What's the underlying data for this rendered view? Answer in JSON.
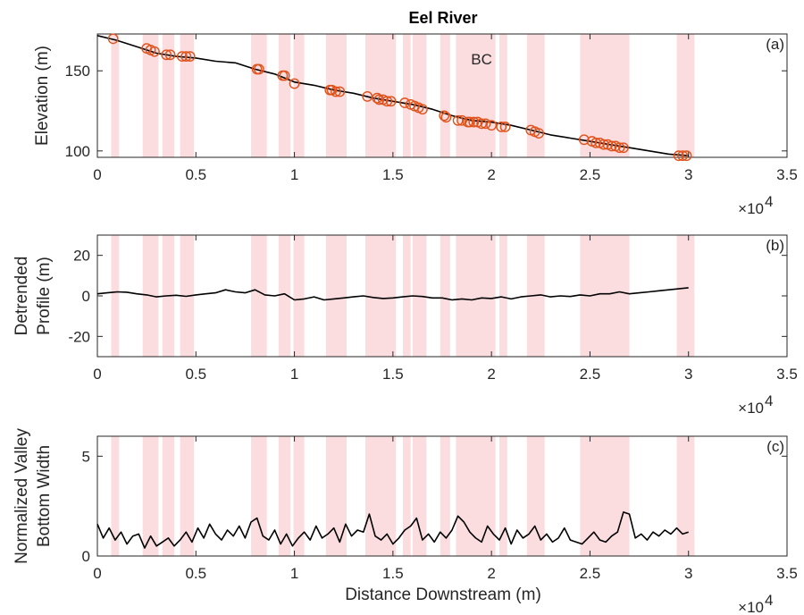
{
  "chart_data": {
    "title": "Eel River",
    "type": "line",
    "xlabel": "Distance Downstream (m)",
    "x_multiplier": "×10",
    "x_multiplier_exp": "4",
    "xlim": [
      0,
      35000
    ],
    "xticks": [
      0,
      5000,
      10000,
      15000,
      20000,
      25000,
      30000,
      35000
    ],
    "xticklabels": [
      "0",
      "0.5",
      "1",
      "1.5",
      "2",
      "2.5",
      "3",
      "3.5"
    ],
    "highlight_color": "#fbdde0",
    "highlight_bands": [
      [
        700,
        1100
      ],
      [
        2300,
        3100
      ],
      [
        3300,
        3900
      ],
      [
        4200,
        4900
      ],
      [
        7800,
        8600
      ],
      [
        9200,
        9800
      ],
      [
        9950,
        10500
      ],
      [
        11600,
        12650
      ],
      [
        13600,
        15150
      ],
      [
        15500,
        15900
      ],
      [
        16000,
        16700
      ],
      [
        17400,
        17900
      ],
      [
        18200,
        20200
      ],
      [
        20400,
        20800
      ],
      [
        21800,
        22700
      ],
      [
        24500,
        27000
      ],
      [
        29400,
        30300
      ]
    ],
    "panels": [
      {
        "id": "a",
        "panel_label": "(a)",
        "ylabel": [
          "Elevation (m)"
        ],
        "ylim": [
          96,
          173
        ],
        "yticks": [
          100,
          150
        ],
        "annotation": "BC",
        "series": [
          {
            "line_color": "#000000",
            "x": [
              0,
              1000,
              2000,
              3000,
              4000,
              5000,
              6000,
              7000,
              8000,
              9000,
              10000,
              11000,
              12000,
              13000,
              14000,
              15000,
              16000,
              17000,
              18000,
              19000,
              20000,
              21000,
              22000,
              23000,
              24000,
              25000,
              26000,
              27000,
              28000,
              29000,
              30000
            ],
            "y": [
              172,
              169,
              165,
              161,
              159,
              158,
              156,
              155,
              151,
              148,
              143,
              141,
              138,
              136,
              133,
              131,
              129,
              126,
              122,
              119,
              118,
              116,
              113,
              110,
              108,
              106,
              104,
              102,
              100,
              98,
              97
            ]
          }
        ],
        "markers": {
          "color": "#e0521a",
          "x": [
            800,
            2500,
            2700,
            2900,
            3500,
            3700,
            4300,
            4500,
            4700,
            8100,
            8200,
            9400,
            9500,
            10000,
            11800,
            11900,
            12100,
            12300,
            13700,
            14200,
            14300,
            14500,
            14700,
            14900,
            15600,
            15900,
            16100,
            16300,
            16500,
            17600,
            17700,
            18300,
            18500,
            18800,
            18900,
            19100,
            19300,
            19500,
            19700,
            20000,
            20500,
            20700,
            22000,
            22200,
            22400,
            24700,
            25100,
            25300,
            25500,
            25700,
            25900,
            26100,
            26300,
            26500,
            26700,
            29500,
            29700,
            29900
          ],
          "y": [
            170,
            164,
            163,
            162,
            160,
            160,
            159,
            159,
            159,
            151,
            151,
            147,
            147,
            142,
            138,
            138,
            137,
            137,
            134,
            133,
            132,
            132,
            131,
            131,
            130,
            129,
            128,
            127,
            126,
            122,
            121,
            119,
            119,
            118,
            118,
            118,
            118,
            117,
            117,
            116,
            115,
            115,
            113,
            112,
            111,
            107,
            106,
            105,
            105,
            104,
            104,
            103,
            103,
            102,
            102,
            97,
            97,
            97
          ]
        }
      },
      {
        "id": "b",
        "panel_label": "(b)",
        "ylabel": [
          "Detrended",
          "Profile (m)"
        ],
        "ylim": [
          -30,
          30
        ],
        "yticks": [
          -20,
          0,
          20
        ],
        "series": [
          {
            "line_color": "#000000",
            "x": [
              0,
              500,
              1000,
              1500,
              2000,
              2500,
              3000,
              3500,
              4000,
              4500,
              5000,
              5500,
              6000,
              6500,
              7000,
              7500,
              8000,
              8500,
              9000,
              9500,
              10000,
              10500,
              11000,
              11500,
              12000,
              12500,
              13000,
              13500,
              14000,
              14500,
              15000,
              15500,
              16000,
              16500,
              17000,
              17500,
              18000,
              18500,
              19000,
              19500,
              20000,
              20500,
              21000,
              21500,
              22000,
              22500,
              23000,
              23500,
              24000,
              24500,
              25000,
              25500,
              26000,
              26500,
              27000,
              27500,
              28000,
              28500,
              29000,
              29500,
              30000
            ],
            "y": [
              1,
              1.5,
              2,
              1.8,
              1,
              0.5,
              -0.5,
              0,
              0.3,
              -0.2,
              0.5,
              1,
              1.5,
              3,
              2,
              1.5,
              3,
              0.5,
              0,
              1,
              -2,
              -1.5,
              -0.5,
              -2,
              -1.5,
              -1,
              -0.5,
              0,
              -0.8,
              -1.3,
              -1,
              -0.5,
              0,
              -0.3,
              -1,
              -1,
              -2,
              -1.5,
              -2,
              -1,
              -1.3,
              -0.5,
              -1.5,
              -0.5,
              0,
              0.5,
              -0.5,
              0,
              -0.3,
              0.5,
              0,
              1,
              1,
              2,
              1,
              1.5,
              2,
              2.5,
              3,
              3.5,
              4
            ]
          }
        ]
      },
      {
        "id": "c",
        "panel_label": "(c)",
        "ylabel": [
          "Normalized Valley",
          "Bottom Width"
        ],
        "ylim": [
          0,
          6
        ],
        "yticks": [
          0,
          5
        ],
        "series": [
          {
            "line_color": "#000000",
            "x": [
              0,
              300,
              600,
              900,
              1200,
              1500,
              1800,
              2100,
              2400,
              2700,
              3000,
              3300,
              3600,
              3900,
              4200,
              4500,
              4800,
              5100,
              5400,
              5700,
              6000,
              6300,
              6600,
              6900,
              7200,
              7500,
              7800,
              8100,
              8400,
              8700,
              9000,
              9300,
              9600,
              9900,
              10200,
              10500,
              10800,
              11100,
              11400,
              11700,
              12000,
              12300,
              12600,
              12900,
              13200,
              13500,
              13800,
              14100,
              14400,
              14700,
              15000,
              15300,
              15600,
              15900,
              16200,
              16500,
              16800,
              17100,
              17400,
              17700,
              18000,
              18300,
              18600,
              18900,
              19200,
              19500,
              19800,
              20100,
              20400,
              20700,
              21000,
              21300,
              21600,
              21900,
              22200,
              22500,
              22800,
              23100,
              23400,
              23700,
              24000,
              24300,
              24600,
              24900,
              25200,
              25500,
              25800,
              26100,
              26400,
              26700,
              27000,
              27300,
              27600,
              27900,
              28200,
              28500,
              28800,
              29100,
              29400,
              29700,
              30000
            ],
            "y": [
              1.6,
              0.9,
              1.4,
              0.8,
              1.2,
              0.6,
              1.0,
              1.1,
              0.4,
              1.0,
              0.5,
              0.7,
              0.9,
              0.5,
              0.8,
              1.2,
              0.7,
              1.4,
              0.9,
              1.6,
              1.1,
              0.8,
              1.3,
              1.0,
              1.5,
              0.9,
              1.7,
              1.9,
              1.0,
              0.8,
              1.3,
              0.6,
              1.1,
              0.5,
              0.9,
              1.2,
              0.8,
              1.5,
              0.9,
              1.1,
              1.4,
              0.7,
              1.6,
              1.0,
              1.3,
              1.2,
              2.1,
              1.0,
              0.8,
              1.1,
              0.6,
              0.9,
              1.3,
              1.5,
              1.9,
              0.8,
              1.1,
              0.7,
              1.2,
              0.9,
              1.3,
              2.0,
              1.7,
              1.2,
              0.9,
              0.7,
              1.5,
              1.1,
              0.8,
              1.4,
              0.6,
              1.3,
              0.9,
              1.1,
              1.5,
              0.8,
              1.1,
              0.7,
              0.9,
              1.4,
              0.8,
              0.7,
              0.6,
              0.9,
              1.2,
              0.8,
              0.7,
              1.0,
              1.2,
              2.2,
              2.1,
              0.9,
              1.1,
              0.8,
              1.2,
              1.0,
              1.3,
              1.1,
              1.4,
              1.1,
              1.2
            ]
          }
        ]
      }
    ]
  }
}
